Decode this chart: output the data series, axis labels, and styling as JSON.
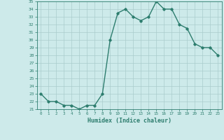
{
  "x": [
    0,
    1,
    2,
    3,
    4,
    5,
    6,
    7,
    8,
    9,
    10,
    11,
    12,
    13,
    14,
    15,
    16,
    17,
    18,
    19,
    20,
    21,
    22,
    23
  ],
  "y": [
    23.0,
    22.0,
    22.0,
    21.5,
    21.5,
    21.0,
    21.5,
    21.5,
    23.0,
    30.0,
    33.5,
    34.0,
    33.0,
    32.5,
    33.0,
    35.0,
    34.0,
    34.0,
    32.0,
    31.5,
    29.5,
    29.0,
    29.0,
    28.0
  ],
  "xlabel": "Humidex (Indice chaleur)",
  "ylim": [
    21,
    35
  ],
  "xlim": [
    -0.5,
    23.5
  ],
  "yticks": [
    21,
    22,
    23,
    24,
    25,
    26,
    27,
    28,
    29,
    30,
    31,
    32,
    33,
    34,
    35
  ],
  "xticks": [
    0,
    1,
    2,
    3,
    4,
    5,
    6,
    7,
    8,
    9,
    10,
    11,
    12,
    13,
    14,
    15,
    16,
    17,
    18,
    19,
    20,
    21,
    22,
    23
  ],
  "line_color": "#2d7d6e",
  "bg_color": "#cdeaea",
  "grid_color": "#aacccc",
  "marker": "D",
  "marker_size": 1.8,
  "line_width": 1.0
}
